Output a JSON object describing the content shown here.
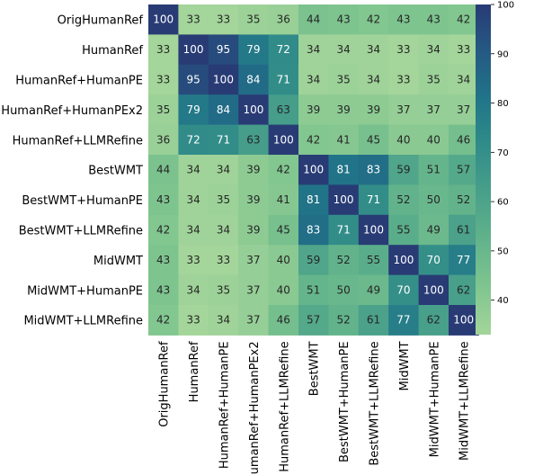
{
  "chart_data": {
    "type": "heatmap",
    "labels": [
      "OrigHumanRef",
      "HumanRef",
      "HumanRef+HumanPE",
      "HumanRef+HumanPEx2",
      "HumanRef+LLMRefine",
      "BestWMT",
      "BestWMT+HumanPE",
      "BestWMT+LLMRefine",
      "MidWMT",
      "MidWMT+HumanPE",
      "MidWMT+LLMRefine"
    ],
    "matrix": [
      [
        100,
        33,
        33,
        35,
        36,
        44,
        43,
        42,
        43,
        43,
        42
      ],
      [
        33,
        100,
        95,
        79,
        72,
        34,
        34,
        34,
        33,
        34,
        33
      ],
      [
        33,
        95,
        100,
        84,
        71,
        34,
        35,
        34,
        33,
        35,
        34
      ],
      [
        35,
        79,
        84,
        100,
        63,
        39,
        39,
        39,
        37,
        37,
        37
      ],
      [
        36,
        72,
        71,
        63,
        100,
        42,
        41,
        45,
        40,
        40,
        46
      ],
      [
        44,
        34,
        34,
        39,
        42,
        100,
        81,
        83,
        59,
        51,
        57
      ],
      [
        43,
        34,
        35,
        39,
        41,
        81,
        100,
        71,
        52,
        50,
        52
      ],
      [
        42,
        34,
        34,
        39,
        45,
        83,
        71,
        100,
        55,
        49,
        61
      ],
      [
        43,
        33,
        33,
        37,
        40,
        59,
        52,
        55,
        100,
        70,
        77
      ],
      [
        43,
        34,
        35,
        37,
        40,
        51,
        50,
        49,
        70,
        100,
        62
      ],
      [
        42,
        33,
        34,
        37,
        46,
        57,
        52,
        61,
        77,
        62,
        100
      ]
    ],
    "colorbar": {
      "min": 33,
      "max": 100,
      "ticks": [
        40,
        50,
        60,
        70,
        80,
        90,
        100
      ]
    },
    "colormap": "crest",
    "colors": {
      "low": "#a4d59a",
      "high": "#283b75"
    }
  }
}
